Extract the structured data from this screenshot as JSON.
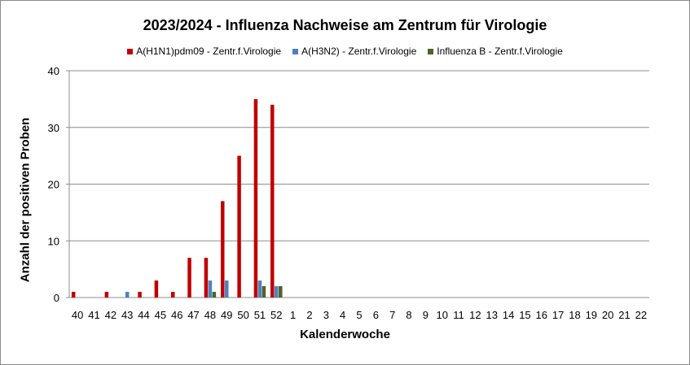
{
  "chart_data": {
    "type": "bar",
    "title": "2023/2024 - Influenza Nachweise am Zentrum für Virologie",
    "xlabel": "Kalenderwoche",
    "ylabel": "Anzahl der positiven Proben",
    "ylim": [
      0,
      40
    ],
    "yticks": [
      0,
      10,
      20,
      30,
      40
    ],
    "grid": true,
    "legend_position": "top",
    "categories": [
      "40",
      "41",
      "42",
      "43",
      "44",
      "45",
      "46",
      "47",
      "48",
      "49",
      "50",
      "51",
      "52",
      "1",
      "2",
      "3",
      "4",
      "5",
      "6",
      "7",
      "8",
      "9",
      "10",
      "11",
      "12",
      "13",
      "14",
      "15",
      "16",
      "17",
      "18",
      "19",
      "20",
      "21",
      "22"
    ],
    "series": [
      {
        "name": "A(H1N1)pdm09 - Zentr.f.Virologie",
        "color": "#c00000",
        "values": [
          1,
          0,
          1,
          0,
          1,
          3,
          1,
          7,
          7,
          17,
          25,
          35,
          34,
          0,
          0,
          0,
          0,
          0,
          0,
          0,
          0,
          0,
          0,
          0,
          0,
          0,
          0,
          0,
          0,
          0,
          0,
          0,
          0,
          0,
          0
        ]
      },
      {
        "name": "A(H3N2) - Zentr.f.Virologie",
        "color": "#4f81bd",
        "values": [
          0,
          0,
          0,
          1,
          0,
          0,
          0,
          0,
          3,
          3,
          0,
          3,
          2,
          0,
          0,
          0,
          0,
          0,
          0,
          0,
          0,
          0,
          0,
          0,
          0,
          0,
          0,
          0,
          0,
          0,
          0,
          0,
          0,
          0,
          0
        ]
      },
      {
        "name": "Influenza B - Zentr.f.Virologie",
        "color": "#4f6228",
        "values": [
          0,
          0,
          0,
          0,
          0,
          0,
          0,
          0,
          1,
          0,
          0,
          2,
          2,
          0,
          0,
          0,
          0,
          0,
          0,
          0,
          0,
          0,
          0,
          0,
          0,
          0,
          0,
          0,
          0,
          0,
          0,
          0,
          0,
          0,
          0
        ]
      }
    ]
  }
}
